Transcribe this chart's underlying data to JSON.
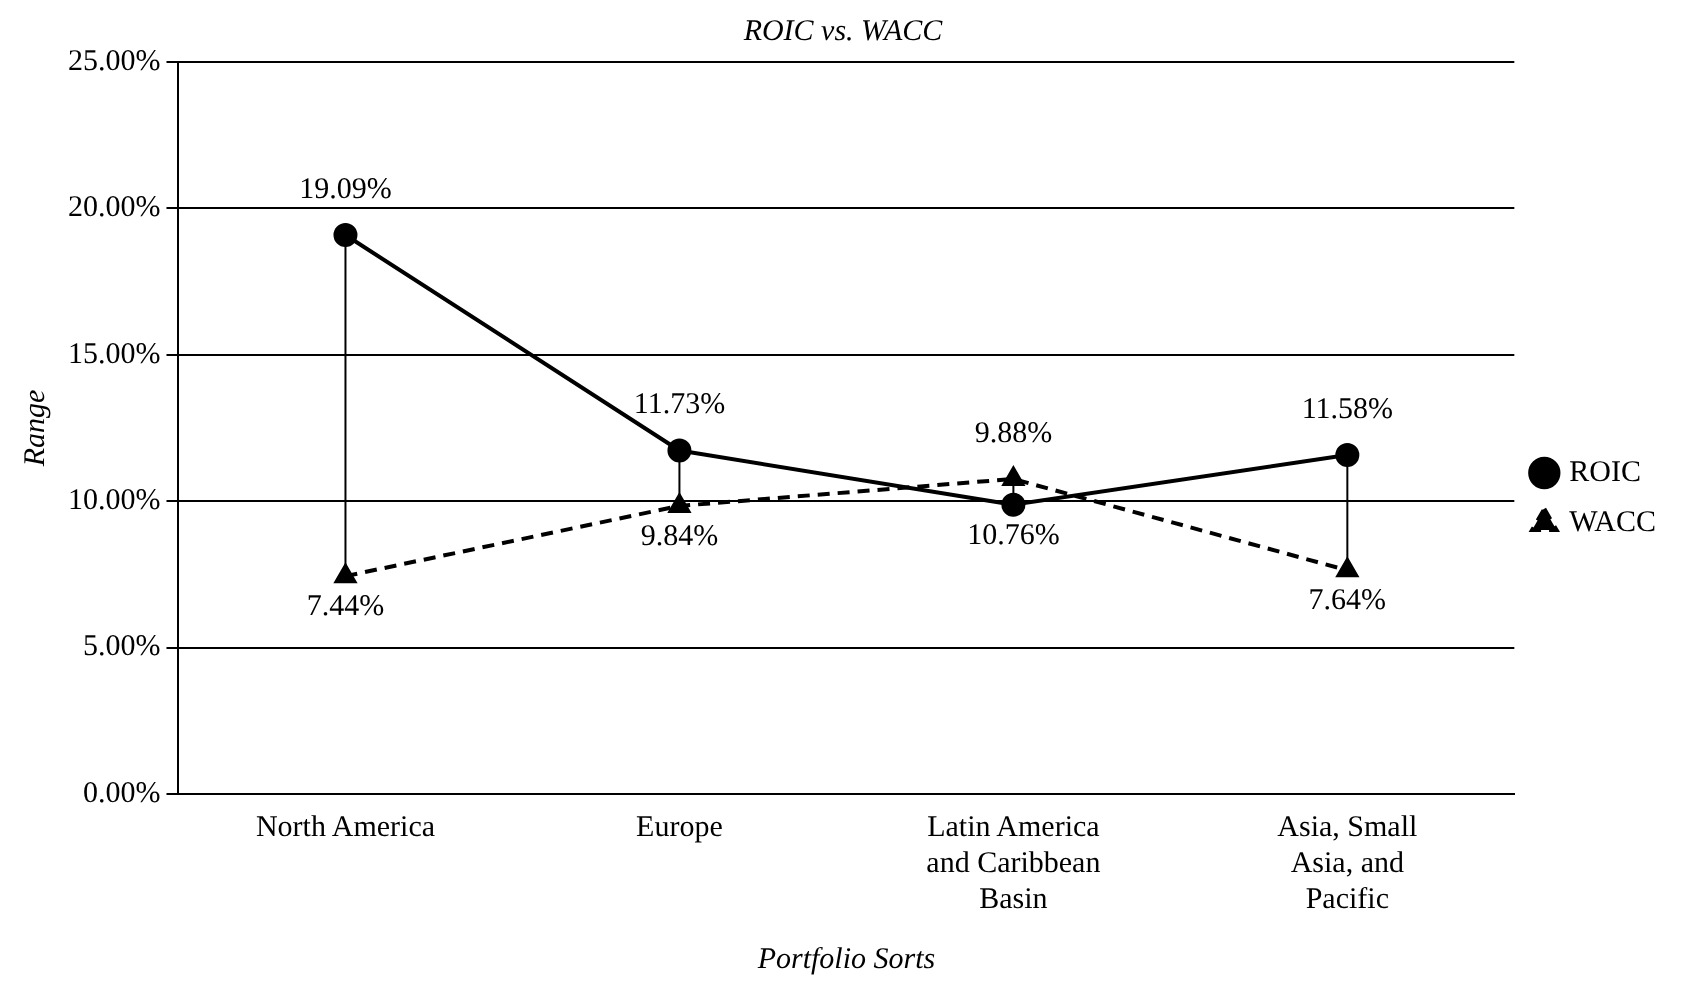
{
  "chart_data": {
    "type": "line",
    "title": "ROIC vs. WACC",
    "xlabel": "Portfolio Sorts",
    "ylabel": "Range",
    "categories": [
      "North America",
      "Europe",
      "Latin America and Caribbean Basin",
      "Asia, Small Asia, and Pacific"
    ],
    "series": [
      {
        "name": "ROIC",
        "color": "#000000",
        "marker": "circle",
        "line_style": "solid",
        "values": [
          19.09,
          11.73,
          9.88,
          11.58
        ],
        "value_labels": [
          "19.09%",
          "11.73%",
          "9.88%",
          "11.58%"
        ]
      },
      {
        "name": "WACC",
        "color": "#000000",
        "marker": "triangle",
        "line_style": "dashed",
        "values": [
          7.44,
          9.84,
          10.76,
          7.64
        ],
        "value_labels": [
          "7.44%",
          "9.84%",
          "10.76%",
          "7.64%"
        ]
      }
    ],
    "ylim": [
      0,
      25
    ],
    "yticks": [
      {
        "value": 0,
        "label": "0.00%"
      },
      {
        "value": 5,
        "label": "5.00%"
      },
      {
        "value": 10,
        "label": "10.00%"
      },
      {
        "value": 15,
        "label": "15.00%"
      },
      {
        "value": 20,
        "label": "20.00%"
      },
      {
        "value": 25,
        "label": "25.00%"
      }
    ],
    "grid": "y",
    "legend": "right"
  }
}
